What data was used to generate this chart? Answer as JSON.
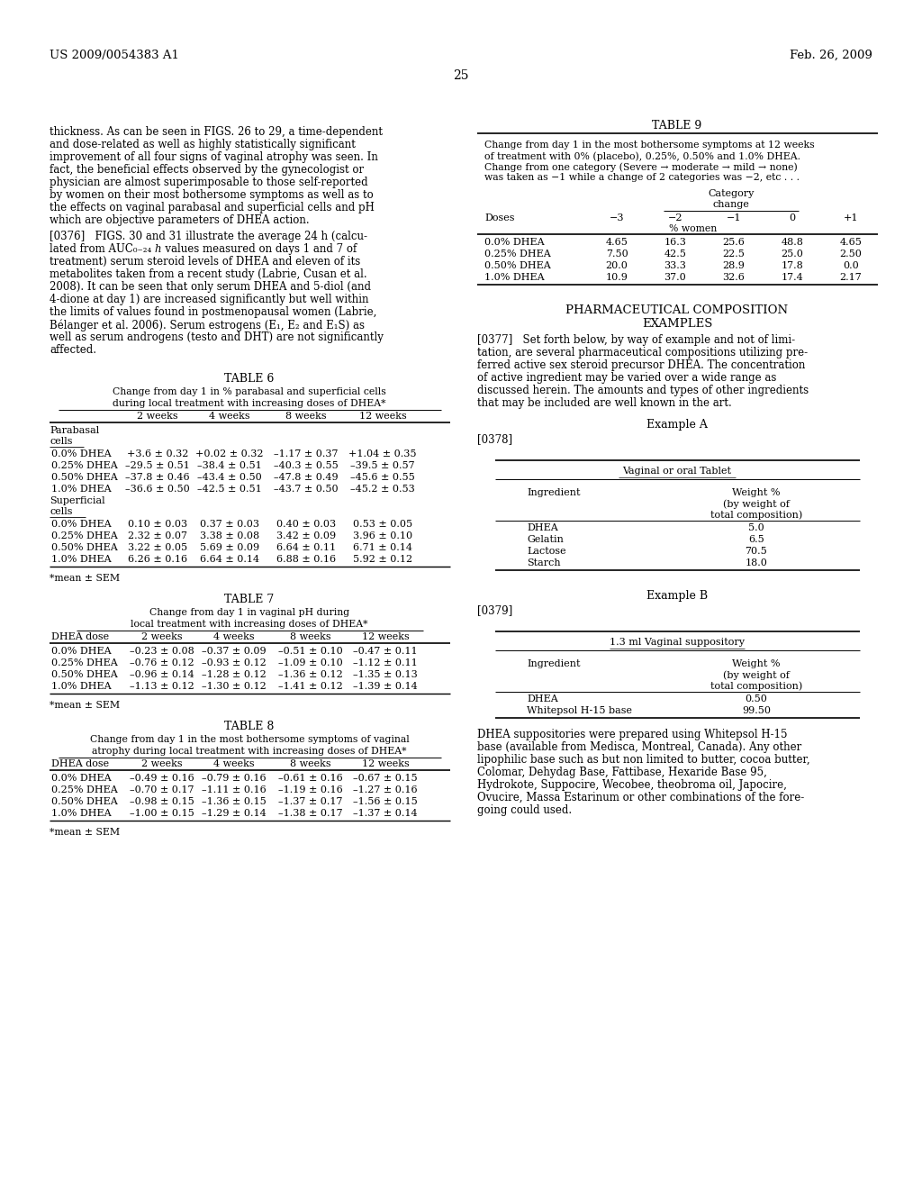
{
  "header_left": "US 2009/0054383 A1",
  "header_right": "Feb. 26, 2009",
  "page_num": "25",
  "bg_color": "#ffffff",
  "left_body_lines": [
    "thickness. As can be seen in FIGS. 26 to 29, a time-dependent",
    "and dose-related as well as highly statistically significant",
    "improvement of all four signs of vaginal atrophy was seen. In",
    "fact, the beneficial effects observed by the gynecologist or",
    "physician are almost superimposable to those self-reported",
    "by women on their most bothersome symptoms as well as to",
    "the effects on vaginal parabasal and superficial cells and pH",
    "which are objective parameters of DHEA action."
  ],
  "para_0376_lines": [
    "[0376]   FIGS. 30 and 31 illustrate the average 24 h (calcu-",
    "lated from AUC₀₋₂₄ ℎ values measured on days 1 and 7 of",
    "treatment) serum steroid levels of DHEA and eleven of its",
    "metabolites taken from a recent study (Labrie, Cusan et al.",
    "2008). It can be seen that only serum DHEA and 5-diol (and",
    "4-dione at day 1) are increased significantly but well within",
    "the limits of values found in postmenopausal women (Labrie,",
    "Bélanger et al. 2006). Serum estrogens (E₁, E₂ and E₁S) as",
    "well as serum androgens (testo and DHT) are not significantly",
    "affected."
  ],
  "table6_title": "TABLE 6",
  "table6_sub1": "Change from day 1 in % parabasal and superficial cells",
  "table6_sub2": "during local treatment with increasing doses of DHEA*",
  "table6_cols": [
    "2 weeks",
    "4 weeks",
    "8 weeks",
    "12 weeks"
  ],
  "table6_para_rows": [
    [
      "0.0% DHEA",
      "+3.6 ± 0.32",
      "+0.02 ± 0.32",
      "–1.17 ± 0.37",
      "+1.04 ± 0.35"
    ],
    [
      "0.25% DHEA",
      "–29.5 ± 0.51",
      "–38.4 ± 0.51",
      "–40.3 ± 0.55",
      "–39.5 ± 0.57"
    ],
    [
      "0.50% DHEA",
      "–37.8 ± 0.46",
      "–43.4 ± 0.50",
      "–47.8 ± 0.49",
      "–45.6 ± 0.55"
    ],
    [
      "1.0% DHEA",
      "–36.6 ± 0.50",
      "–42.5 ± 0.51",
      "–43.7 ± 0.50",
      "–45.2 ± 0.53"
    ]
  ],
  "table6_sup_rows": [
    [
      "0.0% DHEA",
      "0.10 ± 0.03",
      "0.37 ± 0.03",
      "0.40 ± 0.03",
      "0.53 ± 0.05"
    ],
    [
      "0.25% DHEA",
      "2.32 ± 0.07",
      "3.38 ± 0.08",
      "3.42 ± 0.09",
      "3.96 ± 0.10"
    ],
    [
      "0.50% DHEA",
      "3.22 ± 0.05",
      "5.69 ± 0.09",
      "6.64 ± 0.11",
      "6.71 ± 0.14"
    ],
    [
      "1.0% DHEA",
      "6.26 ± 0.16",
      "6.64 ± 0.14",
      "6.88 ± 0.16",
      "5.92 ± 0.12"
    ]
  ],
  "table6_fn": "*mean ± SEM",
  "table7_title": "TABLE 7",
  "table7_sub1": "Change from day 1 in vaginal pH during",
  "table7_sub2": "local treatment with increasing doses of DHEA*",
  "table7_cols": [
    "DHEA dose",
    "2 weeks",
    "4 weeks",
    "8 weeks",
    "12 weeks"
  ],
  "table7_rows": [
    [
      "0.0% DHEA",
      "–0.23 ± 0.08",
      "–0.37 ± 0.09",
      "–0.51 ± 0.10",
      "–0.47 ± 0.11"
    ],
    [
      "0.25% DHEA",
      "–0.76 ± 0.12",
      "–0.93 ± 0.12",
      "–1.09 ± 0.10",
      "–1.12 ± 0.11"
    ],
    [
      "0.50% DHEA",
      "–0.96 ± 0.14",
      "–1.28 ± 0.12",
      "–1.36 ± 0.12",
      "–1.35 ± 0.13"
    ],
    [
      "1.0% DHEA",
      "–1.13 ± 0.12",
      "–1.30 ± 0.12",
      "–1.41 ± 0.12",
      "–1.39 ± 0.14"
    ]
  ],
  "table7_fn": "*mean ± SEM",
  "table8_title": "TABLE 8",
  "table8_sub1": "Change from day 1 in the most bothersome symptoms of vaginal",
  "table8_sub2": "atrophy during local treatment with increasing doses of DHEA*",
  "table8_cols": [
    "DHEA dose",
    "2 weeks",
    "4 weeks",
    "8 weeks",
    "12 weeks"
  ],
  "table8_rows": [
    [
      "0.0% DHEA",
      "–0.49 ± 0.16",
      "–0.79 ± 0.16",
      "–0.61 ± 0.16",
      "–0.67 ± 0.15"
    ],
    [
      "0.25% DHEA",
      "–0.70 ± 0.17",
      "–1.11 ± 0.16",
      "–1.19 ± 0.16",
      "–1.27 ± 0.16"
    ],
    [
      "0.50% DHEA",
      "–0.98 ± 0.15",
      "–1.36 ± 0.15",
      "–1.37 ± 0.17",
      "–1.56 ± 0.15"
    ],
    [
      "1.0% DHEA",
      "–1.00 ± 0.15",
      "–1.29 ± 0.14",
      "–1.38 ± 0.17",
      "–1.37 ± 0.14"
    ]
  ],
  "table8_fn": "*mean ± SEM",
  "table9_title": "TABLE 9",
  "table9_desc_lines": [
    "Change from day 1 in the most bothersome symptoms at 12 weeks",
    "of treatment with 0% (placebo), 0.25%, 0.50% and 1.0% DHEA.",
    "Change from one category (Severe → moderate → mild → none)",
    "was taken as −1 while a change of 2 categories was −2, etc . . ."
  ],
  "table9_cat_cols": [
    "−3",
    "−2",
    "−1",
    "0",
    "+1"
  ],
  "table9_rows": [
    [
      "0.0% DHEA",
      "4.65",
      "16.3",
      "25.6",
      "48.8",
      "4.65"
    ],
    [
      "0.25% DHEA",
      "7.50",
      "42.5",
      "22.5",
      "25.0",
      "2.50"
    ],
    [
      "0.50% DHEA",
      "20.0",
      "33.3",
      "28.9",
      "17.8",
      "0.0"
    ],
    [
      "1.0% DHEA",
      "10.9",
      "37.0",
      "32.6",
      "17.4",
      "2.17"
    ]
  ],
  "pharma_h1": "PHARMACEUTICAL COMPOSITION",
  "pharma_h2": "EXAMPLES",
  "para_0377_lines": [
    "[0377]   Set forth below, by way of example and not of limi-",
    "tation, are several pharmaceutical compositions utilizing pre-",
    "ferred active sex steroid precursor DHEA. The concentration",
    "of active ingredient may be varied over a wide range as",
    "discussed herein. The amounts and types of other ingredients",
    "that may be included are well known in the art."
  ],
  "ex_a_title": "Example A",
  "ex_a_para": "[0378]",
  "ex_a_tbl_title": "Vaginal or oral Tablet",
  "ex_a_rows": [
    [
      "DHEA",
      "5.0"
    ],
    [
      "Gelatin",
      "6.5"
    ],
    [
      "Lactose",
      "70.5"
    ],
    [
      "Starch",
      "18.0"
    ]
  ],
  "ex_b_title": "Example B",
  "ex_b_para": "[0379]",
  "ex_b_tbl_title": "1.3 ml Vaginal suppository",
  "ex_b_rows": [
    [
      "DHEA",
      "0.50"
    ],
    [
      "Whitepsol H-15 base",
      "99.50"
    ]
  ],
  "ex_b_text_lines": [
    "DHEA suppositories were prepared using Whitepsol H-15",
    "base (available from Medisca, Montreal, Canada). Any other",
    "lipophilic base such as but non limited to butter, cocoa butter,",
    "Colomar, Dehydag Base, Fattibase, Hexaride Base 95,",
    "Hydrokote, Suppocire, Wecobee, theobroma oil, Japocire,",
    "Ovucire, Massa Estarinum or other combinations of the fore-",
    "going could used."
  ]
}
